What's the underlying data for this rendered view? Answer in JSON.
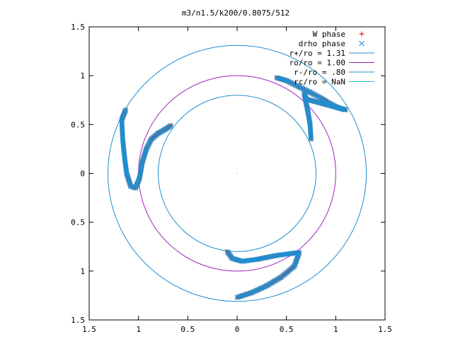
{
  "chart_data": {
    "type": "scatter",
    "title": "m3/n1.5/k200/0.8075/512",
    "xlabel": "",
    "ylabel": "",
    "xlim": [
      -1.5,
      1.5
    ],
    "ylim": [
      -1.5,
      1.5
    ],
    "x_tick_values": [
      -1.5,
      -1,
      -0.5,
      0,
      0.5,
      1,
      1.5
    ],
    "x_tick_labels": [
      "1.5",
      "1",
      "0.5",
      "0",
      "0.5",
      "1",
      "1.5"
    ],
    "y_tick_values": [
      1.5,
      1,
      0.5,
      0,
      -0.5,
      -1,
      -1.5
    ],
    "y_tick_labels": [
      "1.5",
      "1",
      "0.5",
      "0",
      "0.5",
      "1",
      "1.5"
    ],
    "grid": false,
    "legend_position": "top-right",
    "circles": [
      {
        "name": "r+/ro = 1.31",
        "radius": 1.31,
        "color": "#1f8fd0"
      },
      {
        "name": "ro/ro = 1.00",
        "radius": 1.0,
        "color": "#a020c0"
      },
      {
        "name": "r-/ro = .80",
        "radius": 0.8,
        "color": "#1f8fd0"
      },
      {
        "name": "rc/ro = NaN",
        "radius": null,
        "color": "#20c0d0"
      }
    ],
    "series": [
      {
        "name": "W phase",
        "marker": "+",
        "color": "#e00000",
        "arms": [
          {
            "points": [
              [
                -1.13,
                0.65
              ],
              [
                -1.17,
                0.55
              ],
              [
                -1.16,
                0.35
              ],
              [
                -1.14,
                0.15
              ],
              [
                -1.12,
                0.0
              ],
              [
                -1.08,
                -0.13
              ],
              [
                -1.03,
                -0.15
              ],
              [
                -0.99,
                -0.05
              ],
              [
                -0.96,
                0.12
              ],
              [
                -0.92,
                0.25
              ],
              [
                -0.87,
                0.35
              ],
              [
                -0.8,
                0.41
              ],
              [
                -0.73,
                0.45
              ],
              [
                -0.67,
                0.49
              ]
            ]
          },
          {
            "points": [
              [
                0.4,
                0.98
              ],
              [
                0.5,
                0.95
              ],
              [
                0.62,
                0.89
              ],
              [
                0.74,
                0.83
              ],
              [
                0.85,
                0.77
              ],
              [
                0.95,
                0.71
              ],
              [
                1.03,
                0.67
              ],
              [
                1.1,
                0.65
              ],
              [
                0.7,
                0.76
              ],
              [
                0.68,
                0.82
              ],
              [
                0.72,
                0.62
              ],
              [
                0.74,
                0.5
              ],
              [
                0.75,
                0.35
              ]
            ]
          },
          {
            "points": [
              [
                -0.1,
                -0.8
              ],
              [
                -0.05,
                -0.87
              ],
              [
                0.05,
                -0.9
              ],
              [
                0.2,
                -0.88
              ],
              [
                0.4,
                -0.84
              ],
              [
                0.55,
                -0.82
              ],
              [
                0.63,
                -0.81
              ],
              [
                0.58,
                -0.95
              ],
              [
                0.45,
                -1.06
              ],
              [
                0.3,
                -1.15
              ],
              [
                0.15,
                -1.22
              ],
              [
                0.0,
                -1.27
              ]
            ]
          }
        ]
      },
      {
        "name": "drho phase",
        "marker": "x",
        "color": "#1f8fd0",
        "arms": [
          {
            "points": [
              [
                -1.13,
                0.65
              ],
              [
                -1.17,
                0.55
              ],
              [
                -1.16,
                0.35
              ],
              [
                -1.14,
                0.15
              ],
              [
                -1.12,
                0.0
              ],
              [
                -1.08,
                -0.13
              ],
              [
                -1.03,
                -0.15
              ],
              [
                -0.99,
                -0.05
              ],
              [
                -0.96,
                0.12
              ],
              [
                -0.92,
                0.25
              ],
              [
                -0.87,
                0.35
              ],
              [
                -0.8,
                0.41
              ],
              [
                -0.73,
                0.45
              ],
              [
                -0.67,
                0.49
              ]
            ]
          },
          {
            "points": [
              [
                0.4,
                0.98
              ],
              [
                0.5,
                0.95
              ],
              [
                0.62,
                0.89
              ],
              [
                0.74,
                0.83
              ],
              [
                0.85,
                0.77
              ],
              [
                0.95,
                0.71
              ],
              [
                1.03,
                0.67
              ],
              [
                1.1,
                0.65
              ],
              [
                0.7,
                0.76
              ],
              [
                0.68,
                0.82
              ],
              [
                0.72,
                0.62
              ],
              [
                0.74,
                0.5
              ],
              [
                0.75,
                0.35
              ]
            ]
          },
          {
            "points": [
              [
                -0.1,
                -0.8
              ],
              [
                -0.05,
                -0.87
              ],
              [
                0.05,
                -0.9
              ],
              [
                0.2,
                -0.88
              ],
              [
                0.4,
                -0.84
              ],
              [
                0.55,
                -0.82
              ],
              [
                0.63,
                -0.81
              ],
              [
                0.58,
                -0.95
              ],
              [
                0.45,
                -1.06
              ],
              [
                0.3,
                -1.15
              ],
              [
                0.15,
                -1.22
              ],
              [
                0.0,
                -1.27
              ]
            ]
          }
        ]
      }
    ]
  }
}
